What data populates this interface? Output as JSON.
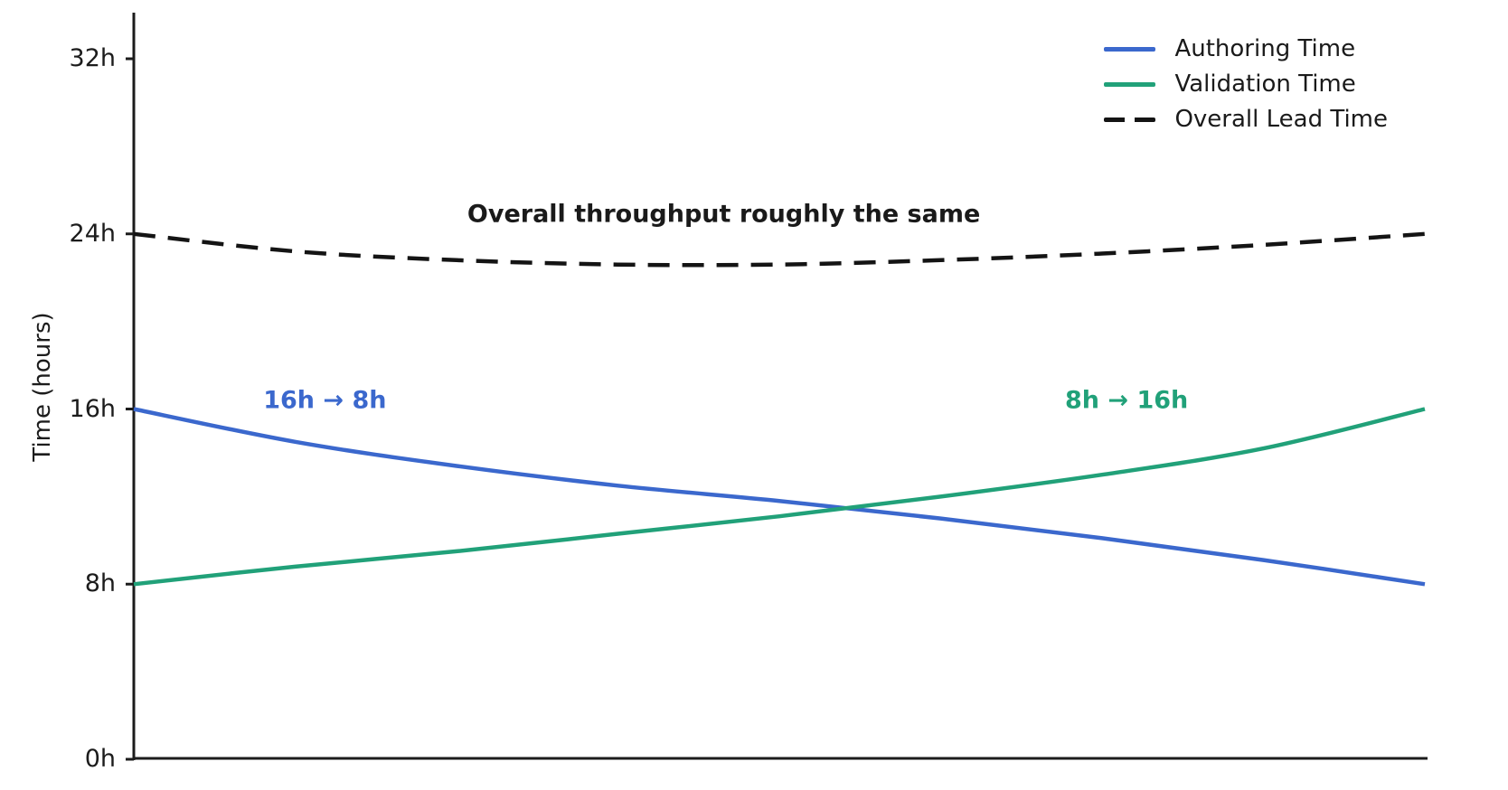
{
  "figure": {
    "background": "#ffffff",
    "axis_color": "#1c1c1c",
    "text_color": "#1a1a1a"
  },
  "chart_data": {
    "type": "line",
    "title": "",
    "xlabel": "",
    "ylabel": "Time (hours)",
    "ylim": [
      0,
      32
    ],
    "xlim": [
      0,
      1
    ],
    "grid": false,
    "legend_position": "upper right",
    "y_ticks": [
      {
        "value": 0,
        "label": "0h"
      },
      {
        "value": 8,
        "label": "8h"
      },
      {
        "value": 16,
        "label": "16h"
      },
      {
        "value": 24,
        "label": "24h"
      },
      {
        "value": 32,
        "label": "32h"
      }
    ],
    "x": [
      0,
      0.125,
      0.25,
      0.375,
      0.5,
      0.625,
      0.75,
      0.875,
      1
    ],
    "series": [
      {
        "name": "Authoring Time",
        "color": "#3b68cd",
        "style": "solid",
        "start_value_h": 16,
        "end_value_h": 8,
        "values": [
          16.0,
          14.5,
          13.4,
          12.5,
          11.8,
          11.0,
          10.1,
          9.1,
          8.0
        ]
      },
      {
        "name": "Validation Time",
        "color": "#21a179",
        "style": "solid",
        "start_value_h": 8,
        "end_value_h": 16,
        "values": [
          8.0,
          8.8,
          9.5,
          10.3,
          11.1,
          12.0,
          13.0,
          14.2,
          16.0
        ]
      },
      {
        "name": "Overall Lead Time",
        "color": "#141414",
        "style": "dashed",
        "start_value_h": 24,
        "end_value_h": 24,
        "values": [
          24.0,
          23.2,
          22.8,
          22.6,
          22.6,
          22.8,
          23.1,
          23.5,
          24.0
        ]
      }
    ],
    "annotations": [
      {
        "text": "Overall throughput roughly the same",
        "color": "#1a1a1a",
        "x": 0.457,
        "y": 24.9
      },
      {
        "text": "16h → 8h",
        "color": "#3b68cd",
        "x": 0.148,
        "y": 16.4
      },
      {
        "text": "8h → 16h",
        "color": "#21a179",
        "x": 0.769,
        "y": 16.4
      }
    ]
  }
}
